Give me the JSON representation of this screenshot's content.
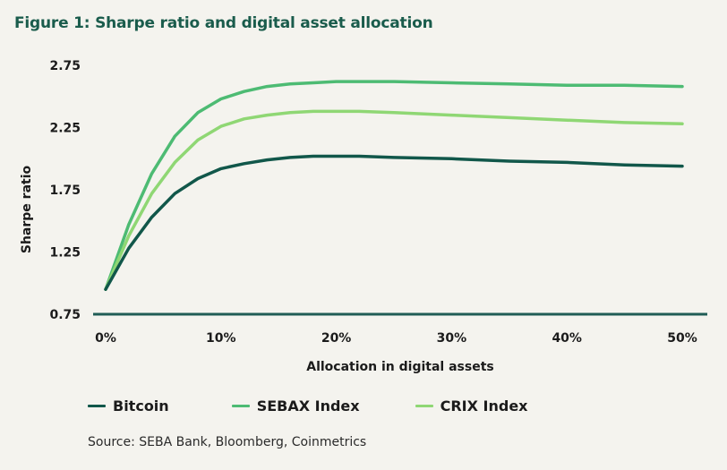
{
  "title": "Figure 1: Sharpe ratio and digital asset allocation",
  "source": "Source: SEBA Bank, Bloomberg, Coinmetrics",
  "chart_data": {
    "type": "line",
    "title": "Figure 1: Sharpe ratio and digital asset allocation",
    "xlabel": "Allocation in digital assets",
    "ylabel": "Sharpe ratio",
    "xlim": [
      0,
      50
    ],
    "ylim": [
      0.75,
      2.75
    ],
    "x_ticks": [
      0,
      10,
      20,
      30,
      40,
      50
    ],
    "x_tick_labels": [
      "0%",
      "10%",
      "20%",
      "30%",
      "40%",
      "50%"
    ],
    "y_ticks": [
      0.75,
      1.25,
      1.75,
      2.25,
      2.75
    ],
    "y_tick_labels": [
      "0.75",
      "1.25",
      "1.75",
      "2.25",
      "2.75"
    ],
    "grid": false,
    "legend_position": "bottom",
    "x": [
      0,
      2,
      4,
      6,
      8,
      10,
      12,
      14,
      16,
      18,
      20,
      22,
      25,
      30,
      35,
      40,
      45,
      50
    ],
    "series": [
      {
        "name": "Bitcoin",
        "color": "#11574a",
        "values": [
          0.95,
          1.28,
          1.53,
          1.72,
          1.84,
          1.92,
          1.96,
          1.99,
          2.01,
          2.02,
          2.02,
          2.02,
          2.01,
          2.0,
          1.98,
          1.97,
          1.95,
          1.94
        ]
      },
      {
        "name": "SEBAX Index",
        "color": "#4dbb73",
        "values": [
          0.95,
          1.47,
          1.88,
          2.18,
          2.37,
          2.48,
          2.54,
          2.58,
          2.6,
          2.61,
          2.62,
          2.62,
          2.62,
          2.61,
          2.6,
          2.59,
          2.59,
          2.58
        ]
      },
      {
        "name": "CRIX Index",
        "color": "#8fd774",
        "values": [
          0.95,
          1.38,
          1.72,
          1.97,
          2.15,
          2.26,
          2.32,
          2.35,
          2.37,
          2.38,
          2.38,
          2.38,
          2.37,
          2.35,
          2.33,
          2.31,
          2.29,
          2.28
        ]
      }
    ]
  }
}
